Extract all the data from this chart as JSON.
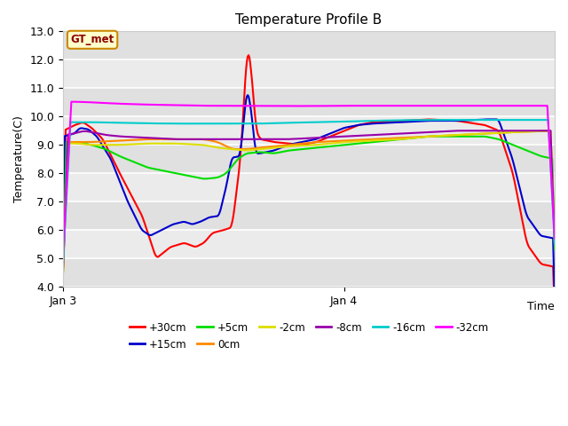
{
  "title": "Temperature Profile B",
  "xlabel": "Time",
  "ylabel": "Temperature(C)",
  "ylim": [
    4.0,
    13.0
  ],
  "yticks": [
    4.0,
    5.0,
    6.0,
    7.0,
    8.0,
    9.0,
    10.0,
    11.0,
    12.0,
    13.0
  ],
  "xtick_labels": [
    "Jan 3",
    "Jan 4"
  ],
  "bg_color": "#e8e8e8",
  "gt_met_label": "GT_met",
  "series_colors": {
    "+30cm": "#ff0000",
    "+15cm": "#0000cc",
    "+5cm": "#00dd00",
    "0cm": "#ff8800",
    "-2cm": "#dddd00",
    "-8cm": "#9900aa",
    "-16cm": "#00cccc",
    "-32cm": "#ff00ff"
  },
  "legend_order": [
    "+30cm",
    "+15cm",
    "+5cm",
    "0cm",
    "-2cm",
    "-8cm",
    "-16cm",
    "-32cm"
  ]
}
